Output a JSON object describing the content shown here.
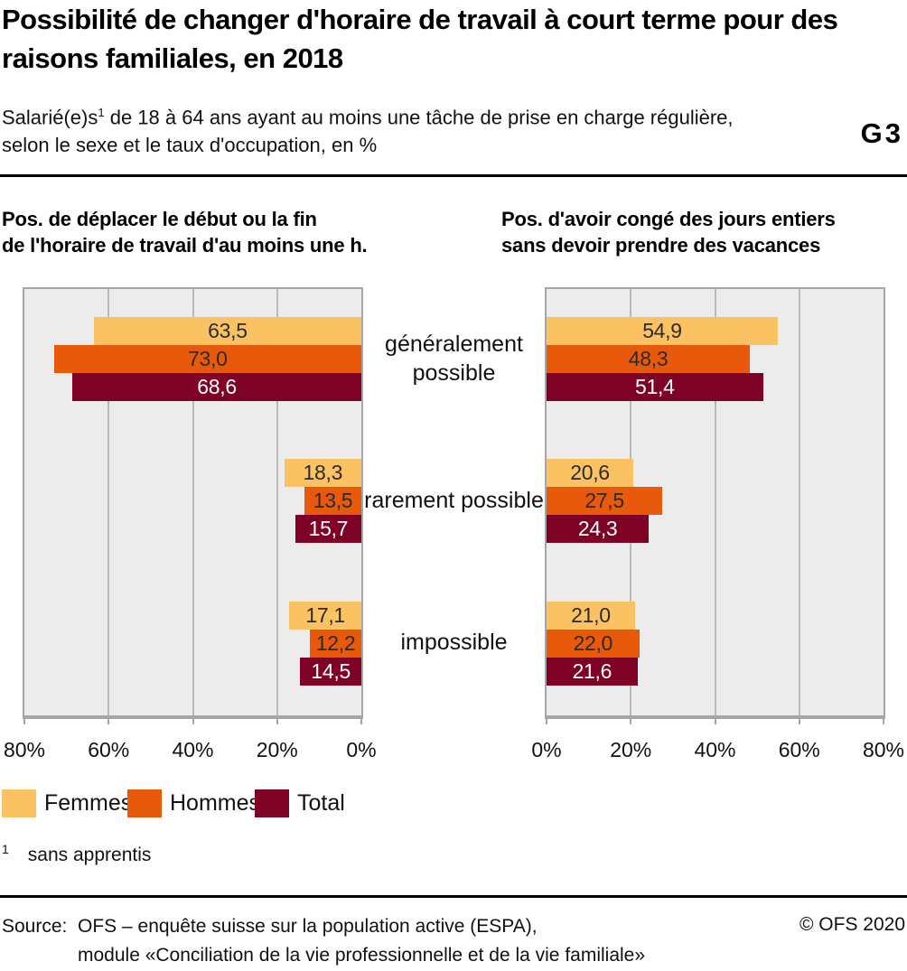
{
  "header": {
    "title": "Possibilité de changer d'horaire de travail à court terme pour des raisons familiales, en 2018",
    "subtitle_prefix": "Salarié(e)s",
    "subtitle_sup": "1",
    "subtitle_rest": " de 18 à 64 ans ayant au moins une tâche de prise en charge régulière, selon le sexe et le taux d'occupation, en %",
    "graph_id": "G3"
  },
  "chart_data": {
    "type": "bar",
    "orientation": "horizontal",
    "unit": "%",
    "grid": true,
    "value_decimal_separator": ",",
    "categories": [
      "généralement possible",
      "rarement possible",
      "impossible"
    ],
    "series_styles": [
      {
        "name": "Femmes",
        "fill": "#FBC264",
        "label_color": "#2B2B2B"
      },
      {
        "name": "Hommes",
        "fill": "#E8590C",
        "label_color": "#2B2B2B"
      },
      {
        "name": "Total",
        "fill": "#7D0226",
        "label_color": "#FFFFFF"
      }
    ],
    "panels": [
      {
        "title": "Pos. de déplacer le début ou la fin\nde l'horaire de travail d'au moins une h.",
        "axis_direction": "right-to-left",
        "xlim": [
          0,
          80
        ],
        "axis_ticks": [
          "80%",
          "60%",
          "40%",
          "20%",
          "0%"
        ],
        "series": [
          {
            "name": "Femmes",
            "values": [
              63.5,
              18.3,
              17.1
            ]
          },
          {
            "name": "Hommes",
            "values": [
              73.0,
              13.5,
              12.2
            ]
          },
          {
            "name": "Total",
            "values": [
              68.6,
              15.7,
              14.5
            ]
          }
        ]
      },
      {
        "title": "Pos. d'avoir congé des jours entiers\nsans devoir prendre des vacances",
        "axis_direction": "left-to-right",
        "xlim": [
          0,
          80
        ],
        "axis_ticks": [
          "0%",
          "20%",
          "40%",
          "60%",
          "80%"
        ],
        "series": [
          {
            "name": "Femmes",
            "values": [
              54.9,
              20.6,
              21.0
            ]
          },
          {
            "name": "Hommes",
            "values": [
              48.3,
              27.5,
              22.0
            ]
          },
          {
            "name": "Total",
            "values": [
              51.4,
              24.3,
              21.6
            ]
          }
        ]
      }
    ],
    "legend_position": "bottom"
  },
  "legend": {
    "items": [
      {
        "label": "Femmes",
        "color": "#FBC264"
      },
      {
        "label": "Hommes",
        "color": "#E8590C"
      },
      {
        "label": "Total",
        "color": "#7D0226"
      }
    ]
  },
  "footnote": {
    "sup": "1",
    "text": "sans apprentis"
  },
  "footer": {
    "source_label": "Source:",
    "source_line1": "OFS – enquête suisse sur la population active (ESPA),",
    "source_line2": "module «Conciliation de la vie professionnelle et de la vie familiale»",
    "copyright": "© OFS 2020"
  }
}
